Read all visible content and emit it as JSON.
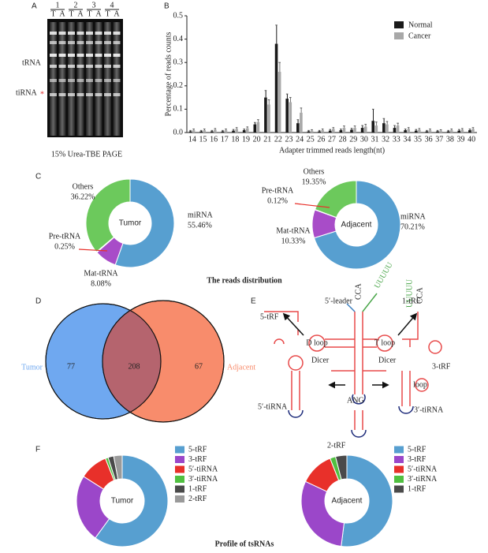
{
  "panel_labels": [
    "A",
    "B",
    "C",
    "D",
    "E",
    "F"
  ],
  "gel": {
    "lanes": [
      "1",
      "2",
      "3",
      "4"
    ],
    "lane_types": [
      "T",
      "A",
      "T",
      "A",
      "T",
      "A",
      "T",
      "A"
    ],
    "bands": [
      "tRNA",
      "tiRNA"
    ],
    "marker": "*",
    "caption": "15% Urea-TBE PAGE"
  },
  "captions": [
    "The reads distribution",
    "Profile of tsRNAs"
  ],
  "venn": {
    "sets": [
      "Tumor",
      "Adjacent"
    ],
    "only_first": 77,
    "both": 208,
    "only_second": 67,
    "colors": [
      "#6fa8f0",
      "#f88c6c",
      "#b5646e"
    ]
  },
  "diagram": {
    "labels": [
      "5-tRF",
      "5′-leader",
      "CCA",
      "UUUUU",
      "UUUUU",
      "1-tRF",
      "CCA",
      "3-tRF",
      "Dicer",
      "Dicer",
      "ANG",
      "5′-tiRNA",
      "3′-tiRNA",
      "2-tRF",
      "D loop",
      "T loop",
      "loop"
    ]
  },
  "chart_data": [
    {
      "type": "bar",
      "ylabel": "Percentage of reads counts",
      "xlabel": "Adapter trimmed reads length(nt)",
      "categories": [
        "14",
        "15",
        "16",
        "17",
        "18",
        "19",
        "20",
        "21",
        "22",
        "23",
        "24",
        "25",
        "26",
        "27",
        "28",
        "29",
        "30",
        "31",
        "32",
        "33",
        "34",
        "35",
        "36",
        "37",
        "38",
        "39",
        "40"
      ],
      "series": [
        {
          "name": "Normal",
          "color": "#1a1a1a",
          "values": [
            0.005,
            0.005,
            0.005,
            0.005,
            0.008,
            0.01,
            0.035,
            0.15,
            0.38,
            0.145,
            0.04,
            0.005,
            0.005,
            0.008,
            0.01,
            0.012,
            0.02,
            0.05,
            0.04,
            0.02,
            0.01,
            0.008,
            0.005,
            0.005,
            0.005,
            0.008,
            0.01
          ],
          "errors": [
            0.004,
            0.004,
            0.004,
            0.004,
            0.005,
            0.005,
            0.008,
            0.03,
            0.08,
            0.02,
            0.015,
            0.004,
            0.004,
            0.005,
            0.005,
            0.006,
            0.01,
            0.05,
            0.02,
            0.01,
            0.005,
            0.005,
            0.004,
            0.004,
            0.004,
            0.005,
            0.005
          ]
        },
        {
          "name": "Cancer",
          "color": "#a8a8a8",
          "values": [
            0.01,
            0.01,
            0.012,
            0.01,
            0.015,
            0.018,
            0.045,
            0.12,
            0.26,
            0.13,
            0.085,
            0.008,
            0.01,
            0.015,
            0.02,
            0.02,
            0.025,
            0.03,
            0.035,
            0.03,
            0.015,
            0.012,
            0.01,
            0.008,
            0.01,
            0.012,
            0.015
          ],
          "errors": [
            0.005,
            0.005,
            0.005,
            0.005,
            0.006,
            0.006,
            0.01,
            0.02,
            0.04,
            0.02,
            0.02,
            0.004,
            0.005,
            0.006,
            0.008,
            0.008,
            0.01,
            0.015,
            0.012,
            0.01,
            0.006,
            0.005,
            0.005,
            0.004,
            0.005,
            0.005,
            0.006
          ]
        }
      ],
      "ylim": [
        0,
        0.5
      ],
      "yticks": [
        {
          "value": 0,
          "label": "0.0"
        },
        0.1,
        0.2,
        0.3,
        0.4,
        0.5
      ],
      "legend": "top-right"
    },
    {
      "type": "pie",
      "donut": true,
      "center_label": "Tumor",
      "categories": [
        "miRNA",
        "Mat-tRNA",
        "Pre-tRNA",
        "Others"
      ],
      "values": [
        55.46,
        8.08,
        0.25,
        36.22
      ],
      "value_labels": [
        "55.46%",
        "8.08%",
        "0.25%",
        "36.22%"
      ],
      "colors": [
        "#579fd0",
        "#a84cc8",
        "#e8302a",
        "#6cc95c"
      ]
    },
    {
      "type": "pie",
      "donut": true,
      "center_label": "Adjacent",
      "categories": [
        "miRNA",
        "Mat-tRNA",
        "Pre-tRNA",
        "Others"
      ],
      "values": [
        70.21,
        10.33,
        0.12,
        19.35
      ],
      "value_labels": [
        "70.21%",
        "10.33%",
        "0.12%",
        "19.35%"
      ],
      "colors": [
        "#579fd0",
        "#a84cc8",
        "#e8302a",
        "#6cc95c"
      ]
    },
    {
      "type": "pie",
      "donut": true,
      "center_label": "Tumor",
      "categories": [
        "5-tRF",
        "3-tRF",
        "5′-tiRNA",
        "3′-tiRNA",
        "1-tRF",
        "2-tRF"
      ],
      "values": [
        60,
        24,
        10,
        1,
        2,
        3
      ],
      "colors": [
        "#579fd0",
        "#9b47c9",
        "#e8302a",
        "#50c040",
        "#4a4a4a",
        "#9a9a9a"
      ]
    },
    {
      "type": "pie",
      "donut": true,
      "center_label": "Adjacent",
      "categories": [
        "5-tRF",
        "3-tRF",
        "5′-tiRNA",
        "3′-tiRNA",
        "1-tRF"
      ],
      "values": [
        52,
        30,
        12,
        2,
        4
      ],
      "colors": [
        "#579fd0",
        "#9b47c9",
        "#e8302a",
        "#50c040",
        "#4a4a4a"
      ]
    }
  ]
}
